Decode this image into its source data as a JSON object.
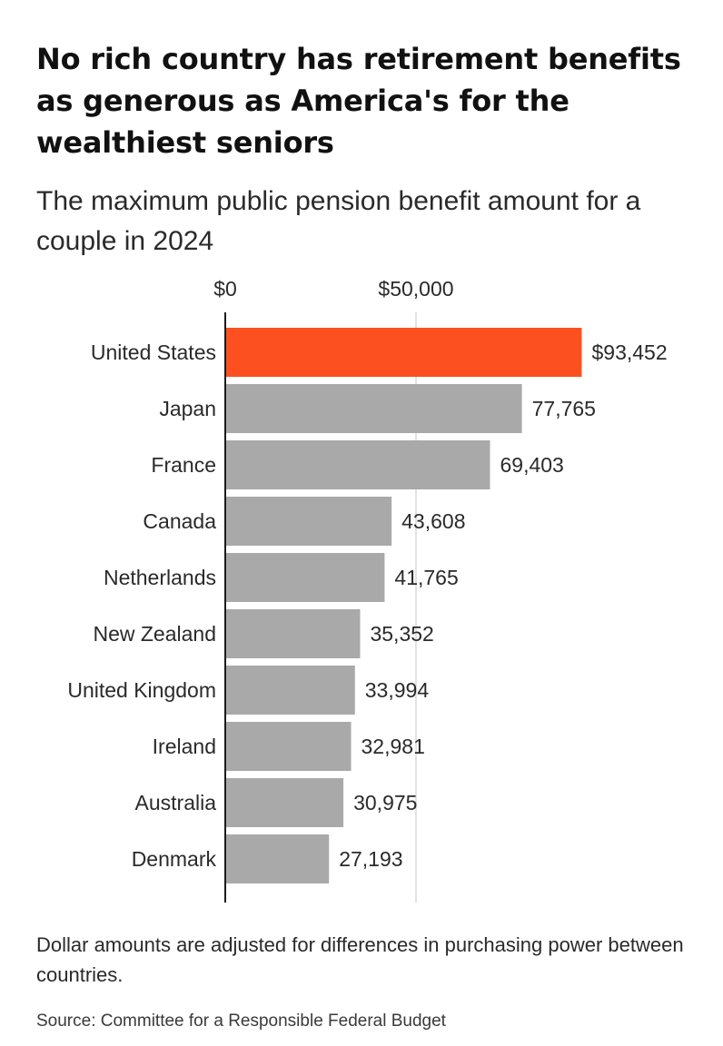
{
  "colors": {
    "highlight": "#fc5021",
    "bar": "#a9a9a9",
    "gridline": "#d9d9d9",
    "axis": "#1a1a1a",
    "text": "#2a2a2a"
  },
  "chart_data": {
    "type": "bar",
    "orientation": "horizontal",
    "title": "No rich country has retirement benefits as generous as America's for the wealthiest seniors",
    "subtitle": "The maximum public pension benefit amount for a couple in 2024",
    "xlim": [
      0,
      100000
    ],
    "x_ticks": [
      {
        "value": 0,
        "label": "$0"
      },
      {
        "value": 50000,
        "label": "$50,000"
      }
    ],
    "categories": [
      "United States",
      "Japan",
      "France",
      "Canada",
      "Netherlands",
      "New Zealand",
      "United Kingdom",
      "Ireland",
      "Australia",
      "Denmark"
    ],
    "values": [
      93452,
      77765,
      69403,
      43608,
      41765,
      35352,
      33994,
      32981,
      30975,
      27193
    ],
    "value_labels": [
      "$93,452",
      "77,765",
      "69,403",
      "43,608",
      "41,765",
      "35,352",
      "33,994",
      "32,981",
      "30,975",
      "27,193"
    ],
    "highlighted_category": "United States",
    "note": "Dollar amounts are adjusted for differences in purchasing power between countries.",
    "source": "Source: Committee for a Responsible Federal Budget"
  }
}
